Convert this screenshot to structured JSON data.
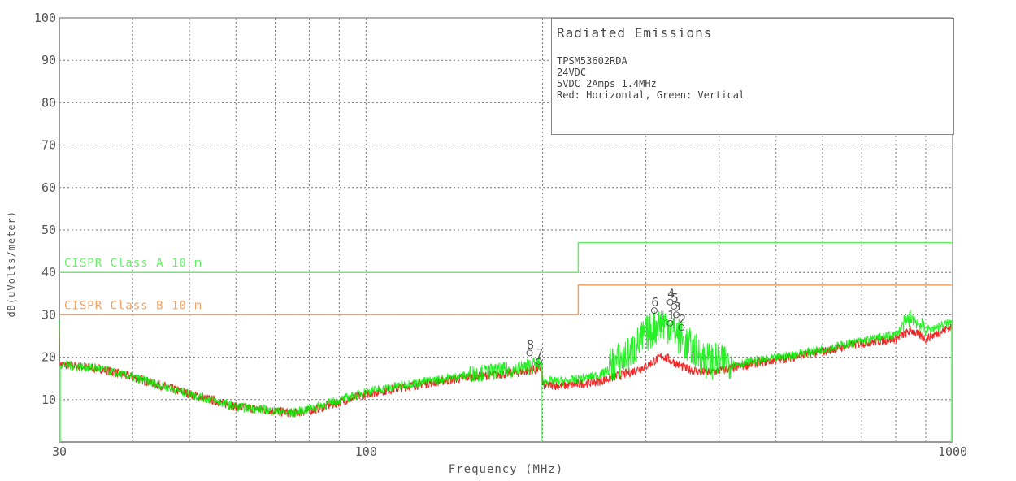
{
  "chart_data": {
    "type": "line",
    "title": "Radiated Emissions",
    "info_lines": [
      "TPSM53602RDA",
      "24VDC",
      "5VDC 2Amps 1.4MHz",
      "Red: Horizontal, Green: Vertical"
    ],
    "xlabel": "Frequency (MHz)",
    "ylabel": "dB(uVolts/meter)",
    "xscale": "log",
    "xlim": [
      30,
      1000
    ],
    "ylim": [
      0,
      100
    ],
    "x_tick_labels": [
      "30",
      "100",
      "1000"
    ],
    "x_gridlines": [
      40,
      50,
      60,
      70,
      80,
      90,
      100,
      200,
      300,
      400,
      500,
      600,
      700,
      800,
      900
    ],
    "y_ticks": [
      10,
      20,
      30,
      40,
      50,
      60,
      70,
      80,
      90,
      100
    ],
    "grid": true,
    "limits": [
      {
        "name": "CISPR Class A 10 m",
        "color": "#66ee66",
        "segments": [
          [
            30,
            230,
            40
          ],
          [
            230,
            1000,
            47
          ]
        ]
      },
      {
        "name": "CISPR Class B 10 m",
        "color": "#f5a060",
        "segments": [
          [
            30,
            230,
            30
          ],
          [
            230,
            1000,
            37
          ]
        ]
      }
    ],
    "series": [
      {
        "name": "Horizontal",
        "color": "#ee1111",
        "x": [
          30,
          35,
          40,
          50,
          60,
          70,
          75,
          80,
          90,
          100,
          120,
          150,
          180,
          199,
          200,
          220,
          250,
          280,
          300,
          320,
          330,
          350,
          380,
          400,
          450,
          500,
          600,
          700,
          800,
          850,
          900,
          1000
        ],
        "values": [
          18,
          17,
          15,
          11,
          8,
          7,
          6.5,
          7,
          9,
          11,
          13,
          15,
          16,
          17,
          13,
          13,
          14,
          16,
          17.5,
          20,
          19,
          17,
          16,
          16.5,
          18,
          19,
          21,
          23,
          24,
          26,
          24,
          27
        ]
      },
      {
        "name": "Vertical",
        "color": "#00ee00",
        "x": [
          30,
          35,
          40,
          50,
          60,
          70,
          75,
          80,
          90,
          100,
          120,
          150,
          180,
          199,
          200,
          220,
          250,
          280,
          300,
          320,
          330,
          350,
          380,
          400,
          450,
          500,
          600,
          700,
          800,
          850,
          900,
          1000
        ],
        "values": [
          18,
          17,
          15,
          11,
          8,
          7,
          6.5,
          7.5,
          9.5,
          11.5,
          13.5,
          15.5,
          16.5,
          18,
          14,
          14,
          15.5,
          19,
          24,
          27,
          26,
          22,
          18,
          17.5,
          18.5,
          19.5,
          21.5,
          23.5,
          25,
          29,
          26,
          28
        ]
      }
    ],
    "markers": [
      {
        "label": "1",
        "x": 330,
        "y": 28
      },
      {
        "label": "2",
        "x": 345,
        "y": 27
      },
      {
        "label": "3",
        "x": 338,
        "y": 30
      },
      {
        "label": "4",
        "x": 330,
        "y": 33
      },
      {
        "label": "5",
        "x": 335,
        "y": 32
      },
      {
        "label": "6",
        "x": 310,
        "y": 31
      },
      {
        "label": "7",
        "x": 197,
        "y": 19
      },
      {
        "label": "8",
        "x": 190,
        "y": 21
      }
    ]
  }
}
